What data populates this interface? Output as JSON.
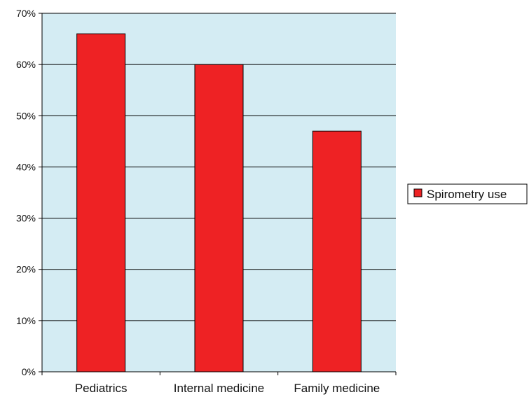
{
  "chart_data": {
    "type": "bar",
    "categories": [
      "Pediatrics",
      "Internal medicine",
      "Family medicine"
    ],
    "series": [
      {
        "name": "Spirometry use",
        "values": [
          0.66,
          0.6,
          0.47
        ]
      }
    ],
    "yticks": [
      "0%",
      "10%",
      "20%",
      "30%",
      "40%",
      "50%",
      "60%",
      "70%"
    ],
    "ylim": [
      0,
      0.7
    ],
    "ystep": 0.1,
    "grid": true,
    "legend": "right",
    "colors": {
      "bar": "#ee2224",
      "plot_background": "#d4ecf3",
      "gridline": "#000000"
    }
  }
}
